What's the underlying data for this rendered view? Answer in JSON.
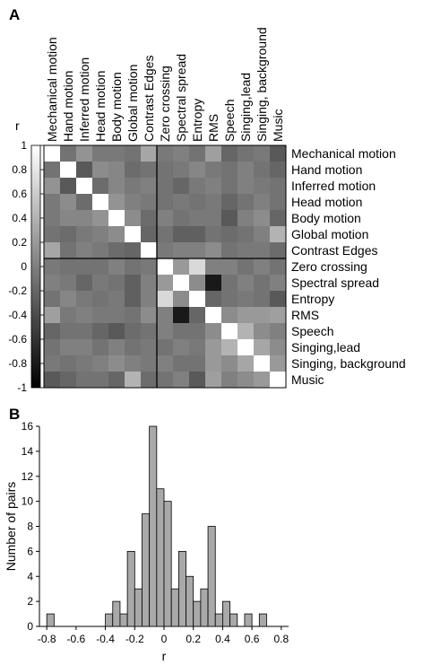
{
  "panel_a": {
    "letter": "A",
    "colorbar_label": "r",
    "colorbar_ticks": [
      "1",
      "0.8",
      "0.6",
      "0.4",
      "0.2",
      "0",
      "-0.2",
      "-0.4",
      "-0.6",
      "-0.8",
      "-1"
    ]
  },
  "panel_b": {
    "letter": "B"
  },
  "chart_data": [
    {
      "type": "heatmap",
      "title": "",
      "labels": [
        "Mechanical motion",
        "Hand motion",
        "Inferred motion",
        "Head motion",
        "Body motion",
        "Global motion",
        "Contrast Edges",
        "Zero crossing",
        "Spectral spread",
        "Entropy",
        "RMS",
        "Speech",
        "Singing,lead",
        "Singing, background",
        "Music"
      ],
      "zlabel": "r",
      "zlim": [
        -1,
        1
      ],
      "group_divider_after_index": 6,
      "values": [
        [
          1.0,
          -0.1,
          0.15,
          -0.05,
          -0.05,
          -0.1,
          0.3,
          -0.05,
          0.0,
          -0.1,
          0.25,
          -0.2,
          -0.1,
          -0.05,
          -0.3
        ],
        [
          -0.1,
          1.0,
          -0.3,
          0.1,
          0.05,
          -0.15,
          -0.1,
          -0.1,
          -0.05,
          0.05,
          -0.05,
          -0.1,
          0.0,
          -0.1,
          -0.2
        ],
        [
          0.15,
          -0.3,
          1.0,
          -0.15,
          0.05,
          -0.05,
          0.0,
          -0.1,
          -0.2,
          -0.05,
          0.0,
          -0.1,
          0.0,
          -0.05,
          -0.1
        ],
        [
          -0.05,
          0.1,
          -0.15,
          1.0,
          0.15,
          0.0,
          -0.05,
          -0.1,
          -0.05,
          -0.1,
          -0.05,
          -0.2,
          -0.1,
          0.0,
          -0.1
        ],
        [
          -0.05,
          0.05,
          0.05,
          0.15,
          1.0,
          0.1,
          -0.15,
          0.0,
          -0.1,
          -0.05,
          -0.05,
          -0.3,
          0.0,
          0.1,
          -0.2
        ],
        [
          -0.1,
          -0.15,
          -0.05,
          0.0,
          0.1,
          1.0,
          -0.2,
          -0.1,
          -0.25,
          -0.25,
          -0.1,
          -0.15,
          -0.1,
          0.0,
          0.4
        ],
        [
          0.3,
          -0.1,
          0.0,
          -0.05,
          -0.15,
          -0.2,
          1.0,
          -0.05,
          0.0,
          0.0,
          0.1,
          -0.1,
          -0.05,
          -0.05,
          -0.15
        ],
        [
          -0.05,
          -0.1,
          -0.1,
          -0.1,
          0.0,
          -0.1,
          -0.05,
          1.0,
          0.2,
          0.7,
          0.0,
          0.0,
          -0.1,
          0.0,
          -0.1
        ],
        [
          0.0,
          -0.05,
          -0.2,
          -0.05,
          -0.1,
          -0.25,
          0.0,
          0.2,
          1.0,
          0.1,
          -0.8,
          -0.1,
          0.0,
          -0.1,
          0.0
        ],
        [
          -0.1,
          0.05,
          -0.05,
          -0.1,
          -0.05,
          -0.25,
          0.0,
          0.7,
          0.1,
          1.0,
          -0.2,
          -0.1,
          -0.05,
          -0.1,
          -0.3
        ],
        [
          0.25,
          -0.05,
          0.0,
          -0.05,
          -0.05,
          -0.1,
          0.1,
          0.0,
          -0.8,
          -0.2,
          1.0,
          0.1,
          0.2,
          0.2,
          0.25
        ],
        [
          -0.2,
          -0.1,
          -0.1,
          -0.2,
          -0.3,
          -0.15,
          -0.1,
          0.0,
          -0.1,
          -0.1,
          0.1,
          1.0,
          0.4,
          0.1,
          0.0
        ],
        [
          -0.1,
          0.0,
          0.0,
          -0.1,
          0.0,
          -0.1,
          -0.05,
          -0.1,
          0.0,
          -0.05,
          0.2,
          0.4,
          1.0,
          0.3,
          0.1
        ],
        [
          -0.05,
          -0.1,
          -0.05,
          0.0,
          0.1,
          0.0,
          -0.05,
          0.0,
          -0.1,
          -0.1,
          0.2,
          0.1,
          0.3,
          1.0,
          0.2
        ],
        [
          -0.3,
          -0.2,
          -0.1,
          -0.1,
          -0.2,
          0.4,
          -0.15,
          -0.1,
          0.0,
          -0.3,
          0.25,
          0.0,
          0.1,
          0.2,
          1.0
        ]
      ]
    },
    {
      "type": "bar",
      "title": "",
      "xlabel": "r",
      "ylabel": "Number of pairs",
      "xlim": [
        -0.85,
        0.85
      ],
      "ylim": [
        0,
        16
      ],
      "bin_width": 0.05,
      "x_ticks": [
        "-0.8",
        "-0.6",
        "-0.4",
        "-0.2",
        "0",
        "0.2",
        "0.4",
        "0.6",
        "0.8"
      ],
      "y_ticks": [
        "0",
        "2",
        "4",
        "6",
        "8",
        "10",
        "12",
        "14",
        "16"
      ],
      "bins": [
        {
          "x0": -0.8,
          "count": 1
        },
        {
          "x0": -0.4,
          "count": 1
        },
        {
          "x0": -0.35,
          "count": 2
        },
        {
          "x0": -0.3,
          "count": 1
        },
        {
          "x0": -0.25,
          "count": 6
        },
        {
          "x0": -0.2,
          "count": 3
        },
        {
          "x0": -0.15,
          "count": 9
        },
        {
          "x0": -0.1,
          "count": 16
        },
        {
          "x0": -0.05,
          "count": 11
        },
        {
          "x0": 0.0,
          "count": 10
        },
        {
          "x0": 0.05,
          "count": 3
        },
        {
          "x0": 0.1,
          "count": 6
        },
        {
          "x0": 0.15,
          "count": 4
        },
        {
          "x0": 0.2,
          "count": 2
        },
        {
          "x0": 0.25,
          "count": 3
        },
        {
          "x0": 0.3,
          "count": 8
        },
        {
          "x0": 0.35,
          "count": 1
        },
        {
          "x0": 0.4,
          "count": 2
        },
        {
          "x0": 0.45,
          "count": 1
        },
        {
          "x0": 0.55,
          "count": 1
        },
        {
          "x0": 0.65,
          "count": 1
        }
      ]
    }
  ]
}
